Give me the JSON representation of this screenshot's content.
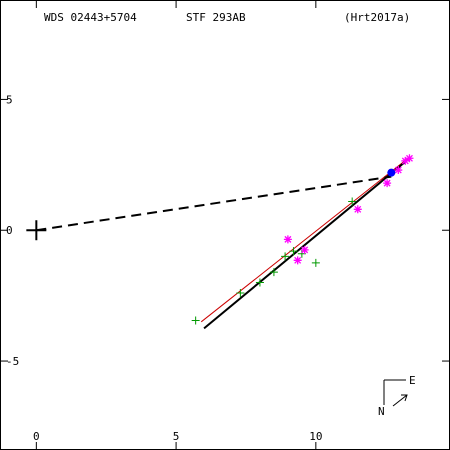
{
  "header": {
    "star_id": "WDS 02443+5704",
    "discoverer": "STF 293AB",
    "orbit_ref": "(Hrt2017a)"
  },
  "compass": {
    "north": "N",
    "east": "E"
  },
  "colors": {
    "axes": "#000000",
    "orbit": "#000000",
    "fit_line": "#cc0000",
    "micrometer": "#009900",
    "speckle": "#ff00ff",
    "latest": "#0000ff"
  },
  "chart_data": {
    "type": "scatter",
    "x_ticks": [
      0,
      5,
      10
    ],
    "y_ticks": [
      5,
      0,
      -5
    ],
    "x_tick_labels": [
      "0",
      "5",
      "10"
    ],
    "y_tick_labels": [
      "5",
      "0",
      "-5"
    ],
    "xlim": [
      -1.3,
      14.8
    ],
    "ylim": [
      8.8,
      -8.4
    ],
    "primary": [
      0,
      0
    ],
    "orbit_arc": [
      [
        6.0,
        -3.75
      ],
      [
        13.35,
        2.75
      ]
    ],
    "fit_line": [
      [
        5.9,
        -3.5
      ],
      [
        13.3,
        2.75
      ]
    ],
    "node_line": [
      [
        0,
        0
      ],
      [
        12.7,
        2.05
      ]
    ],
    "micrometer_points": [
      [
        5.7,
        -3.45
      ],
      [
        7.3,
        -2.4
      ],
      [
        8.0,
        -2.0
      ],
      [
        8.5,
        -1.6
      ],
      [
        8.9,
        -1.0
      ],
      [
        9.2,
        -0.8
      ],
      [
        9.5,
        -0.9
      ],
      [
        10.0,
        -1.25
      ],
      [
        11.3,
        1.1
      ]
    ],
    "speckle_points": [
      [
        9.0,
        -0.35
      ],
      [
        9.35,
        -1.15
      ],
      [
        9.6,
        -0.75
      ],
      [
        11.5,
        0.8
      ],
      [
        12.55,
        1.8
      ],
      [
        12.95,
        2.3
      ],
      [
        13.2,
        2.65
      ],
      [
        13.35,
        2.75
      ]
    ],
    "latest_point": [
      12.7,
      2.2
    ]
  }
}
